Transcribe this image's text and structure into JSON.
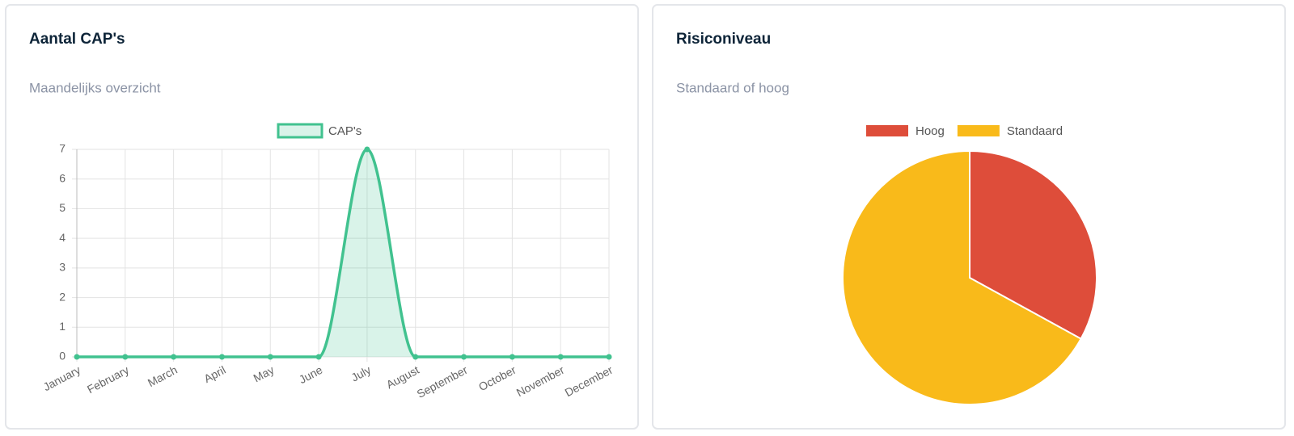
{
  "chart_data": [
    {
      "type": "line",
      "title": "Aantal CAP's",
      "subtitle": "Maandelijks overzicht",
      "categories": [
        "January",
        "February",
        "March",
        "April",
        "May",
        "June",
        "July",
        "August",
        "September",
        "October",
        "November",
        "December"
      ],
      "series": [
        {
          "name": "CAP's",
          "color": "#41c28f",
          "values": [
            0,
            0,
            0,
            0,
            0,
            0,
            7,
            0,
            0,
            0,
            0,
            0
          ]
        }
      ],
      "ylim": [
        0,
        7
      ],
      "yticks": [
        0,
        1,
        2,
        3,
        4,
        5,
        6,
        7
      ],
      "grid": true
    },
    {
      "type": "pie",
      "title": "Risiconiveau",
      "subtitle": "Standaard of hoog",
      "categories": [
        "Hoog",
        "Standaard"
      ],
      "values": [
        33,
        67
      ],
      "colors": [
        "#de4d3a",
        "#f9ba1a"
      ]
    }
  ]
}
